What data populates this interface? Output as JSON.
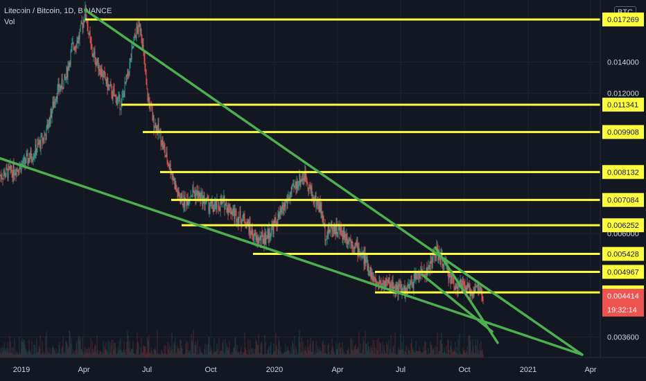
{
  "header": {
    "symbol_title": "Litecoin / Bitcoin, 1D, BINANCE",
    "volume_label": "Vol",
    "currency_button": "BTC"
  },
  "colors": {
    "background": "#131722",
    "level_line": "#ffff3d",
    "trend_line": "#4caf50",
    "candle_up": "#26a69a",
    "candle_down": "#ef5350",
    "last_price_badge": "#ef5350",
    "axis_text": "#d1d4dc"
  },
  "price_axis": {
    "tick_labels": [
      "0.014000",
      "0.012000",
      "0.006000",
      "0.003600"
    ],
    "last_price": "0.004414",
    "countdown": "19:32:14"
  },
  "time_axis": {
    "tick_labels": [
      "2019",
      "Apr",
      "Jul",
      "Oct",
      "2020",
      "Apr",
      "Jul",
      "Oct",
      "2021",
      "Apr"
    ]
  },
  "chart_data": {
    "type": "candlestick",
    "title": "Litecoin / Bitcoin, 1D, BINANCE",
    "x_range": [
      "2018-12-01",
      "2021-04-15"
    ],
    "y_range": [
      0.0033,
      0.0185
    ],
    "y_scale": "log",
    "level_lines": [
      {
        "label": "0.017269",
        "value": 0.017269,
        "start": "2019-04-03"
      },
      {
        "label": "0.011341",
        "value": 0.011341,
        "start": "2019-05-25"
      },
      {
        "label": "0.009908",
        "value": 0.009908,
        "start": "2019-06-25"
      },
      {
        "label": "0.008132",
        "value": 0.008132,
        "start": "2019-07-20"
      },
      {
        "label": "0.007084",
        "value": 0.007084,
        "start": "2019-08-05"
      },
      {
        "label": "0.006252",
        "value": 0.006252,
        "start": "2019-08-20"
      },
      {
        "label": "0.005428",
        "value": 0.005428,
        "start": "2019-12-01"
      },
      {
        "label": "0.004967",
        "value": 0.004967,
        "start": "2020-05-25"
      },
      {
        "label": "0.004488",
        "value": 0.004488,
        "start": "2020-05-25"
      }
    ],
    "trend_lines": [
      {
        "from": [
          "2019-04-03",
          0.0181
        ],
        "to": [
          "2021-03-20",
          0.0033
        ]
      },
      {
        "from": [
          "2018-12-01",
          0.0087
        ],
        "to": [
          "2021-03-20",
          0.0033
        ]
      },
      {
        "from": [
          "2020-08-20",
          0.0056
        ],
        "to": [
          "2020-11-18",
          0.0035
        ]
      },
      {
        "from": [
          "2020-08-01",
          0.0049
        ],
        "to": [
          "2020-11-10",
          0.0037
        ]
      }
    ],
    "price_path": [
      [
        "2018-12-01",
        0.008
      ],
      [
        "2018-12-20",
        0.0082
      ],
      [
        "2019-01-05",
        0.0085
      ],
      [
        "2019-01-20",
        0.009
      ],
      [
        "2019-02-05",
        0.0098
      ],
      [
        "2019-02-20",
        0.012
      ],
      [
        "2019-03-05",
        0.0128
      ],
      [
        "2019-03-15",
        0.015
      ],
      [
        "2019-03-25",
        0.0158
      ],
      [
        "2019-04-03",
        0.018
      ],
      [
        "2019-04-12",
        0.0148
      ],
      [
        "2019-04-25",
        0.0135
      ],
      [
        "2019-05-05",
        0.0125
      ],
      [
        "2019-05-15",
        0.0118
      ],
      [
        "2019-05-25",
        0.0114
      ],
      [
        "2019-06-05",
        0.0135
      ],
      [
        "2019-06-15",
        0.0162
      ],
      [
        "2019-06-22",
        0.0168
      ],
      [
        "2019-07-01",
        0.012
      ],
      [
        "2019-07-10",
        0.0105
      ],
      [
        "2019-07-20",
        0.0098
      ],
      [
        "2019-07-28",
        0.0088
      ],
      [
        "2019-08-05",
        0.0082
      ],
      [
        "2019-08-15",
        0.0072
      ],
      [
        "2019-08-25",
        0.007
      ],
      [
        "2019-09-05",
        0.0074
      ],
      [
        "2019-09-20",
        0.0071
      ],
      [
        "2019-10-05",
        0.0068
      ],
      [
        "2019-10-20",
        0.007
      ],
      [
        "2019-11-05",
        0.0066
      ],
      [
        "2019-11-20",
        0.0064
      ],
      [
        "2019-12-05",
        0.0058
      ],
      [
        "2019-12-20",
        0.0059
      ],
      [
        "2020-01-05",
        0.0064
      ],
      [
        "2020-01-20",
        0.0071
      ],
      [
        "2020-02-05",
        0.0078
      ],
      [
        "2020-02-15",
        0.008
      ],
      [
        "2020-02-25",
        0.0072
      ],
      [
        "2020-03-08",
        0.0068
      ],
      [
        "2020-03-14",
        0.006
      ],
      [
        "2020-03-25",
        0.0062
      ],
      [
        "2020-04-10",
        0.006
      ],
      [
        "2020-04-25",
        0.0057
      ],
      [
        "2020-05-10",
        0.0053
      ],
      [
        "2020-05-25",
        0.0047
      ],
      [
        "2020-06-10",
        0.0047
      ],
      [
        "2020-06-25",
        0.0046
      ],
      [
        "2020-07-10",
        0.0045
      ],
      [
        "2020-07-25",
        0.0049
      ],
      [
        "2020-08-10",
        0.005
      ],
      [
        "2020-08-20",
        0.0055
      ],
      [
        "2020-09-01",
        0.0052
      ],
      [
        "2020-09-15",
        0.0047
      ],
      [
        "2020-09-30",
        0.0046
      ],
      [
        "2020-10-10",
        0.0045
      ],
      [
        "2020-10-20",
        0.0046
      ],
      [
        "2020-10-28",
        0.0044
      ]
    ]
  }
}
